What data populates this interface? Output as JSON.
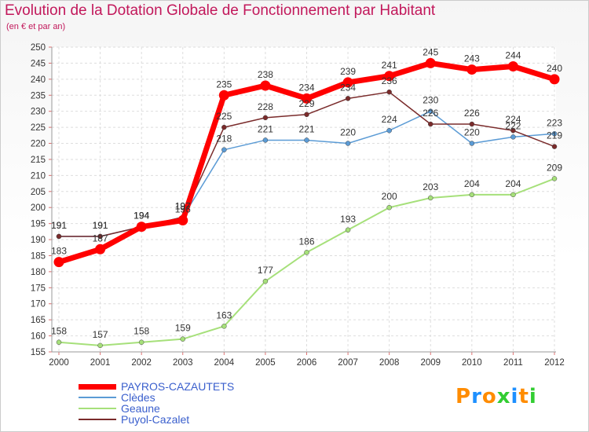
{
  "chart_data": {
    "type": "line",
    "title": "Evolution de la Dotation Globale de Fonctionnement par Habitant",
    "subtitle": "(en € et par an)",
    "xlabel": "",
    "ylabel": "",
    "x": [
      "2000",
      "2001",
      "2002",
      "2003",
      "2004",
      "2005",
      "2006",
      "2007",
      "2008",
      "2009",
      "2010",
      "2011",
      "2012"
    ],
    "ylim": [
      155,
      250
    ],
    "yticks": [
      155,
      160,
      165,
      170,
      175,
      180,
      185,
      190,
      195,
      200,
      205,
      210,
      215,
      220,
      225,
      230,
      235,
      240,
      245,
      250
    ],
    "grid": true,
    "legend_position": "bottom-left",
    "series": [
      {
        "name": "PAYROS-CAZAUTETS",
        "color": "#ff0000",
        "width": 7,
        "marker": 6.5,
        "values": [
          183,
          187,
          194,
          196,
          235,
          238,
          234,
          239,
          241,
          245,
          243,
          244,
          240
        ],
        "labels": [
          "183",
          "187",
          "194",
          "196",
          "235",
          "238",
          "234",
          "239",
          "241",
          "245",
          "243",
          "244",
          "240"
        ]
      },
      {
        "name": "Clèdes",
        "color": "#5b9bd5",
        "width": 1.5,
        "marker": 3,
        "values": [
          191,
          191,
          194,
          197,
          218,
          221,
          221,
          220,
          224,
          230,
          220,
          222,
          223
        ],
        "labels": [
          "191",
          "191",
          "194",
          "197",
          "218",
          "221",
          "221",
          "220",
          "224",
          "230",
          "220",
          "222",
          "223"
        ]
      },
      {
        "name": "Geaune",
        "color": "#a6e07a",
        "width": 2,
        "marker": 3,
        "values": [
          158,
          157,
          158,
          159,
          163,
          177,
          186,
          193,
          200,
          203,
          204,
          204,
          209
        ],
        "labels": [
          "158",
          "157",
          "158",
          "159",
          "163",
          "177",
          "186",
          "193",
          "200",
          "203",
          "204",
          "204",
          "209"
        ]
      },
      {
        "name": "Puyol-Cazalet",
        "color": "#7a2b2b",
        "width": 1.5,
        "marker": 3,
        "values": [
          191,
          191,
          194,
          197,
          225,
          228,
          229,
          234,
          236,
          226,
          226,
          224,
          219
        ],
        "labels": [
          "191",
          "191",
          "194",
          "197",
          "225",
          "228",
          "229",
          "234",
          "236",
          "226",
          "226",
          "224",
          "219"
        ]
      }
    ]
  },
  "logo": {
    "text": "Proxiti",
    "letters": [
      "P",
      "r",
      "o",
      "x",
      "i",
      "t",
      "i"
    ],
    "colors": [
      "#ff8c00",
      "#1e90ff",
      "#ff8c00",
      "#32cd32",
      "#1e90ff",
      "#ff8c00",
      "#32cd32"
    ]
  }
}
